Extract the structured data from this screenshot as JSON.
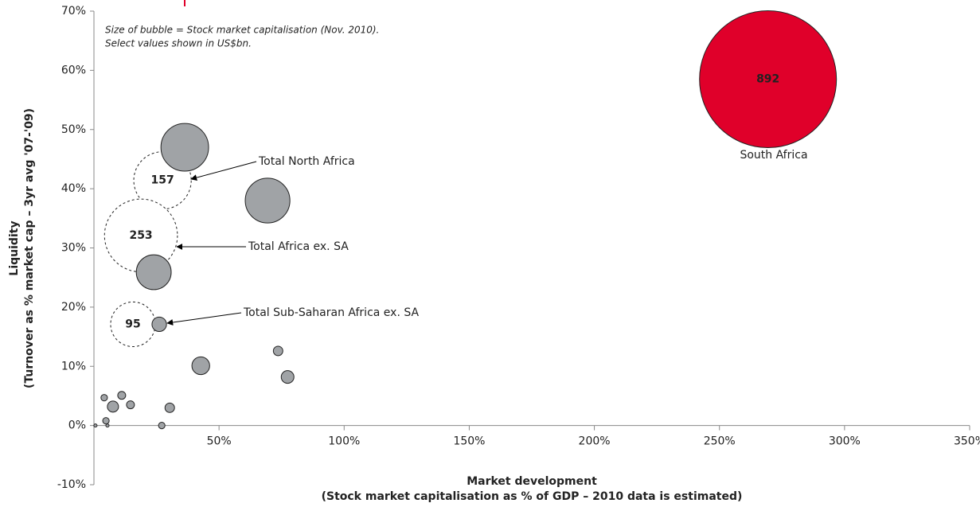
{
  "chart_data": {
    "type": "bubble",
    "note": [
      "Size of bubble = Stock market capitalisation (Nov. 2010).",
      "Select values shown in US$bn."
    ],
    "xlabel": [
      "Market development",
      "(Stock market capitalisation as % of GDP – 2010 data is estimated)"
    ],
    "ylabel": [
      "Liquidity",
      "(Turnover as % market cap – 3yr avg '07-'09)"
    ],
    "xlim": [
      0,
      350
    ],
    "ylim": [
      -10,
      70
    ],
    "xticks": [
      {
        "value": 50,
        "label": "50%"
      },
      {
        "value": 100,
        "label": "100%"
      },
      {
        "value": 150,
        "label": "150%"
      },
      {
        "value": 200,
        "label": "200%"
      },
      {
        "value": 250,
        "label": "250%"
      },
      {
        "value": 300,
        "label": "300%"
      },
      {
        "value": 350,
        "label": "350%"
      }
    ],
    "yticks": [
      {
        "value": -10,
        "label": "-10%"
      },
      {
        "value": 0,
        "label": "0%"
      },
      {
        "value": 10,
        "label": "10%"
      },
      {
        "value": 20,
        "label": "20%"
      },
      {
        "value": 30,
        "label": "30%"
      },
      {
        "value": 40,
        "label": "40%"
      },
      {
        "value": 50,
        "label": "50%"
      },
      {
        "value": 60,
        "label": "60%"
      },
      {
        "value": 70,
        "label": "70%"
      }
    ],
    "series": [
      {
        "color": "#ffffff",
        "style": "dashed",
        "x": [
          27.4,
          18.8,
          15.6
        ],
        "values": [
          41.4,
          32.1,
          17.1
        ],
        "sizes": [
          157,
          253,
          95
        ],
        "value_labels": [
          "157",
          "253",
          "95"
        ]
      },
      {
        "color": "#a0a3a6",
        "style": "solid",
        "x": [
          36.3,
          69.4,
          23.9,
          26.1,
          42.7,
          73.6,
          77.4,
          30.3,
          4.1,
          11.1,
          7.6,
          14.6,
          4.8,
          0.6,
          5.4,
          27.1
        ],
        "values": [
          47.0,
          38.0,
          25.9,
          17.1,
          10.1,
          12.6,
          8.2,
          3.0,
          4.7,
          5.1,
          3.2,
          3.5,
          0.8,
          0,
          0,
          0
        ],
        "sizes": [
          108,
          95,
          58,
          10,
          15,
          4.3,
          7.7,
          4.3,
          2,
          3,
          5.9,
          3,
          2,
          0.5,
          0.5,
          2
        ]
      },
      {
        "color": "#e0002a",
        "style": "solid",
        "x": [
          269.4
        ],
        "values": [
          58.5
        ],
        "sizes": [
          892
        ],
        "value_labels": [
          "892"
        ]
      }
    ],
    "annotations": [
      "Total North Africa",
      "Total Africa ex. SA",
      "Total Sub-Saharan Africa ex. SA",
      "South Africa"
    ]
  }
}
